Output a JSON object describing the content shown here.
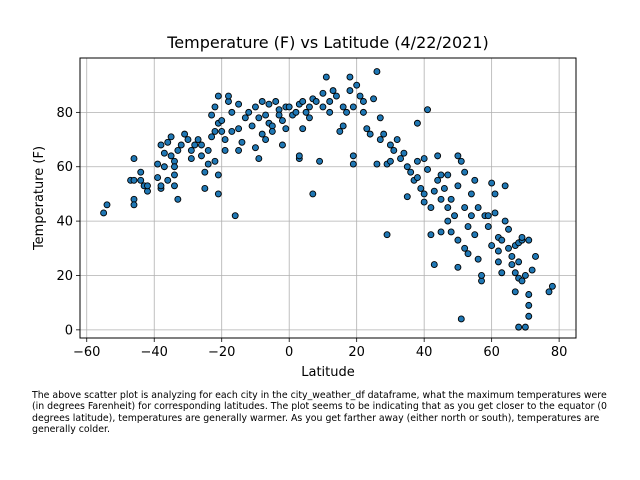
{
  "chart_data": {
    "type": "scatter",
    "title": "Temperature (F) vs Latitude (4/22/2021)",
    "xlabel": "Latitude",
    "ylabel": "Temperature (F)",
    "xlim": [
      -62,
      85
    ],
    "ylim": [
      -3,
      100
    ],
    "xticks": [
      -60,
      -40,
      -20,
      0,
      20,
      40,
      60,
      80
    ],
    "yticks": [
      0,
      20,
      40,
      60,
      80
    ],
    "grid": true,
    "marker_color": "#1f77b4",
    "marker_edge": "#000000",
    "points": [
      [
        -55,
        43
      ],
      [
        -54,
        46
      ],
      [
        -47,
        55
      ],
      [
        -46,
        63
      ],
      [
        -46,
        55
      ],
      [
        -46,
        48
      ],
      [
        -46,
        46
      ],
      [
        -44,
        58
      ],
      [
        -44,
        55
      ],
      [
        -43,
        53
      ],
      [
        -42,
        51
      ],
      [
        -42,
        53
      ],
      [
        -39,
        61
      ],
      [
        -39,
        56
      ],
      [
        -38,
        68
      ],
      [
        -38,
        52
      ],
      [
        -38,
        53
      ],
      [
        -37,
        60
      ],
      [
        -37,
        65
      ],
      [
        -36,
        69
      ],
      [
        -36,
        55
      ],
      [
        -35,
        64
      ],
      [
        -35,
        71
      ],
      [
        -34,
        62
      ],
      [
        -34,
        60
      ],
      [
        -34,
        57
      ],
      [
        -34,
        53
      ],
      [
        -33,
        48
      ],
      [
        -33,
        66
      ],
      [
        -32,
        68
      ],
      [
        -31,
        72
      ],
      [
        -30,
        70
      ],
      [
        -29,
        63
      ],
      [
        -29,
        66
      ],
      [
        -28,
        68
      ],
      [
        -27,
        70
      ],
      [
        -26,
        64
      ],
      [
        -26,
        68
      ],
      [
        -25,
        52
      ],
      [
        -25,
        58
      ],
      [
        -24,
        61
      ],
      [
        -24,
        66
      ],
      [
        -23,
        71
      ],
      [
        -23,
        79
      ],
      [
        -22,
        73
      ],
      [
        -22,
        82
      ],
      [
        -22,
        62
      ],
      [
        -21,
        86
      ],
      [
        -21,
        76
      ],
      [
        -21,
        57
      ],
      [
        -21,
        50
      ],
      [
        -20,
        73
      ],
      [
        -20,
        77
      ],
      [
        -19,
        70
      ],
      [
        -19,
        66
      ],
      [
        -18,
        84
      ],
      [
        -18,
        86
      ],
      [
        -17,
        73
      ],
      [
        -17,
        80
      ],
      [
        -16,
        42
      ],
      [
        -15,
        83
      ],
      [
        -15,
        74
      ],
      [
        -15,
        66
      ],
      [
        -14,
        69
      ],
      [
        -13,
        78
      ],
      [
        -12,
        80
      ],
      [
        -11,
        75
      ],
      [
        -10,
        82
      ],
      [
        -10,
        67
      ],
      [
        -9,
        63
      ],
      [
        -9,
        78
      ],
      [
        -8,
        84
      ],
      [
        -8,
        72
      ],
      [
        -7,
        70
      ],
      [
        -7,
        79
      ],
      [
        -6,
        83
      ],
      [
        -6,
        76
      ],
      [
        -5,
        75
      ],
      [
        -5,
        73
      ],
      [
        -4,
        84
      ],
      [
        -3,
        81
      ],
      [
        -3,
        79
      ],
      [
        -2,
        68
      ],
      [
        -2,
        77
      ],
      [
        -1,
        82
      ],
      [
        -1,
        74
      ],
      [
        0,
        82
      ],
      [
        1,
        79
      ],
      [
        2,
        80
      ],
      [
        3,
        83
      ],
      [
        3,
        63
      ],
      [
        3,
        64
      ],
      [
        4,
        74
      ],
      [
        4,
        84
      ],
      [
        5,
        80
      ],
      [
        6,
        82
      ],
      [
        6,
        78
      ],
      [
        7,
        50
      ],
      [
        7,
        85
      ],
      [
        8,
        84
      ],
      [
        9,
        62
      ],
      [
        10,
        87
      ],
      [
        10,
        82
      ],
      [
        11,
        93
      ],
      [
        12,
        84
      ],
      [
        12,
        80
      ],
      [
        13,
        88
      ],
      [
        14,
        86
      ],
      [
        15,
        73
      ],
      [
        16,
        82
      ],
      [
        16,
        75
      ],
      [
        17,
        80
      ],
      [
        18,
        93
      ],
      [
        18,
        88
      ],
      [
        19,
        61
      ],
      [
        19,
        64
      ],
      [
        19,
        82
      ],
      [
        20,
        90
      ],
      [
        21,
        86
      ],
      [
        22,
        84
      ],
      [
        22,
        80
      ],
      [
        23,
        74
      ],
      [
        24,
        72
      ],
      [
        25,
        85
      ],
      [
        26,
        95
      ],
      [
        26,
        61
      ],
      [
        27,
        78
      ],
      [
        27,
        70
      ],
      [
        28,
        72
      ],
      [
        29,
        61
      ],
      [
        29,
        35
      ],
      [
        30,
        68
      ],
      [
        30,
        62
      ],
      [
        31,
        66
      ],
      [
        32,
        70
      ],
      [
        33,
        63
      ],
      [
        34,
        65
      ],
      [
        35,
        60
      ],
      [
        35,
        49
      ],
      [
        36,
        58
      ],
      [
        37,
        55
      ],
      [
        38,
        56
      ],
      [
        38,
        62
      ],
      [
        38,
        76
      ],
      [
        39,
        52
      ],
      [
        40,
        47
      ],
      [
        40,
        50
      ],
      [
        40,
        63
      ],
      [
        41,
        81
      ],
      [
        41,
        59
      ],
      [
        42,
        45
      ],
      [
        42,
        35
      ],
      [
        43,
        51
      ],
      [
        43,
        24
      ],
      [
        44,
        64
      ],
      [
        44,
        55
      ],
      [
        45,
        57
      ],
      [
        45,
        48
      ],
      [
        45,
        36
      ],
      [
        46,
        52
      ],
      [
        47,
        57
      ],
      [
        47,
        45
      ],
      [
        47,
        40
      ],
      [
        48,
        48
      ],
      [
        48,
        36
      ],
      [
        49,
        42
      ],
      [
        50,
        64
      ],
      [
        50,
        53
      ],
      [
        50,
        33
      ],
      [
        50,
        23
      ],
      [
        51,
        4
      ],
      [
        51,
        62
      ],
      [
        52,
        58
      ],
      [
        52,
        45
      ],
      [
        52,
        30
      ],
      [
        53,
        38
      ],
      [
        53,
        28
      ],
      [
        54,
        50
      ],
      [
        54,
        42
      ],
      [
        55,
        55
      ],
      [
        55,
        35
      ],
      [
        56,
        45
      ],
      [
        56,
        26
      ],
      [
        57,
        18
      ],
      [
        57,
        20
      ],
      [
        58,
        42
      ],
      [
        59,
        42
      ],
      [
        59,
        38
      ],
      [
        60,
        54
      ],
      [
        60,
        31
      ],
      [
        61,
        50
      ],
      [
        61,
        43
      ],
      [
        62,
        34
      ],
      [
        62,
        29
      ],
      [
        62,
        25
      ],
      [
        63,
        21
      ],
      [
        63,
        33
      ],
      [
        64,
        40
      ],
      [
        64,
        53
      ],
      [
        65,
        37
      ],
      [
        65,
        30
      ],
      [
        66,
        27
      ],
      [
        66,
        24
      ],
      [
        67,
        14
      ],
      [
        67,
        21
      ],
      [
        67,
        31
      ],
      [
        68,
        25
      ],
      [
        68,
        32
      ],
      [
        68,
        1
      ],
      [
        68,
        19
      ],
      [
        69,
        33
      ],
      [
        69,
        18
      ],
      [
        69,
        34
      ],
      [
        70,
        20
      ],
      [
        70,
        1
      ],
      [
        71,
        9
      ],
      [
        71,
        13
      ],
      [
        71,
        5
      ],
      [
        71,
        33
      ],
      [
        72,
        22
      ],
      [
        73,
        27
      ],
      [
        77,
        14
      ],
      [
        78,
        16
      ]
    ]
  },
  "caption": "The above scatter plot is analyzing for each city in the city_weather_df dataframe, what the maximum temperatures were\n(in degrees Farenheit) for corresponding latitudes. The plot seems to be indicating that as you get closer to the equator (0\ndegrees latitude), temperatures are generally warmer. As you get farther away (either north or south), temperatures are\ngenerally colder."
}
